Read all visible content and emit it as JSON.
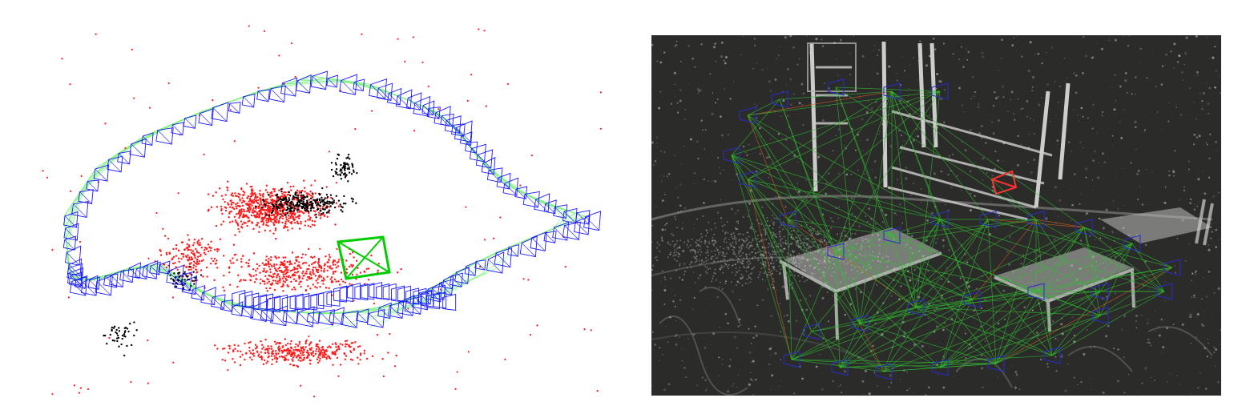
{
  "figure": {
    "left_panel": {
      "kind": "sparse-slam-map",
      "colors": {
        "background": "#ffffff",
        "keyframes": "#1a1aff",
        "covisibility_edges": "#7df27d",
        "local_map_points": "#ff1a1a",
        "map_points": "#000000",
        "current_camera": "#00cc00"
      }
    },
    "right_panel": {
      "kind": "dense-slam-reconstruction",
      "colors": {
        "background": "#2b2c29",
        "reconstruction": "#d9d9d9",
        "keyframes": "#2a2acc",
        "edges": "#2fc02f",
        "loop_edges": "#e06020",
        "current_camera": "#ff3030"
      }
    }
  }
}
